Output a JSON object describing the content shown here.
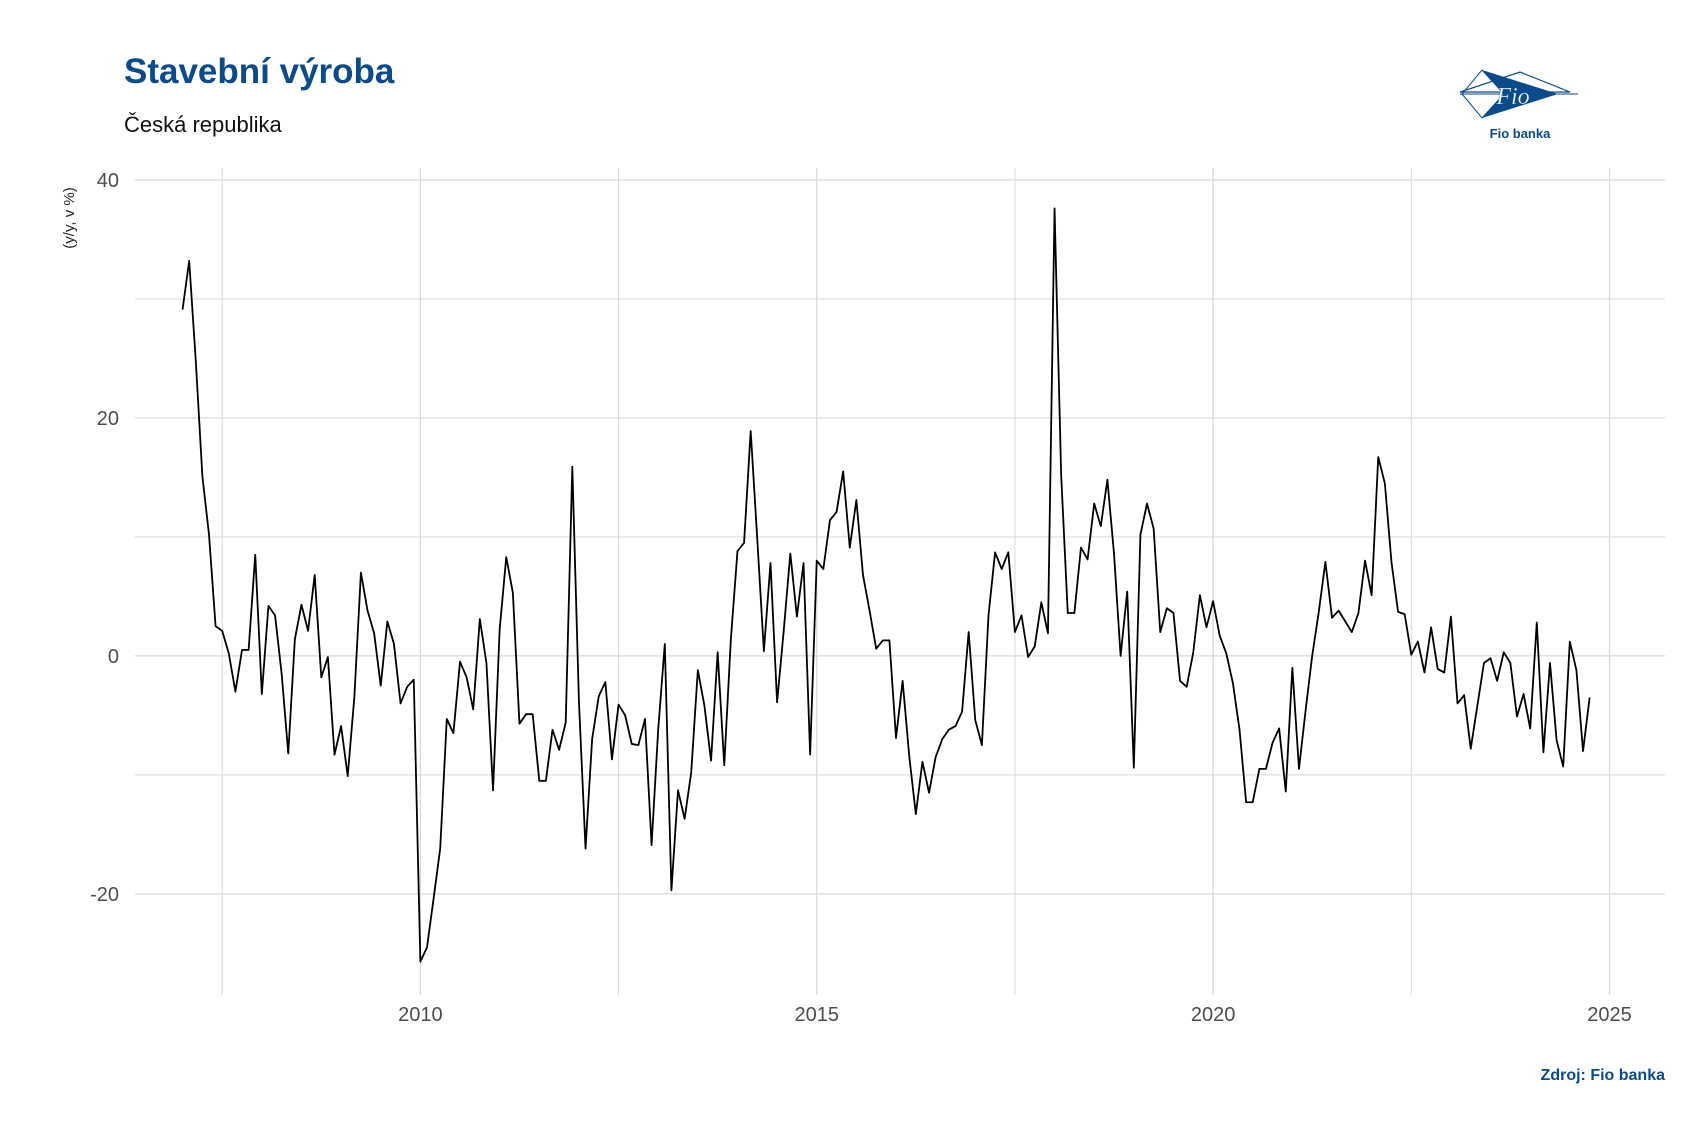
{
  "title": "Stavební výroba",
  "subtitle": "Česká republika",
  "source": "Zdroj: Fio banka",
  "logo": {
    "mark_text": "Fio",
    "caption": "Fio banka",
    "color": "#0b4a8b"
  },
  "colors": {
    "title": "#0b4a8b",
    "line": "#000000",
    "grid": "#d9d9d9"
  },
  "chart_data": {
    "type": "line",
    "title": "Stavební výroba",
    "subtitle": "Česká republika",
    "xlabel": "",
    "ylabel": "(y/y, v %)",
    "xlim": [
      2006.4,
      2025.7
    ],
    "ylim": [
      -28.5,
      41
    ],
    "x_ticks": [
      2010,
      2015,
      2020,
      2025
    ],
    "x_tick_labels": [
      "2010",
      "2015",
      "2020",
      "2025"
    ],
    "y_ticks": [
      -20,
      0,
      20,
      40
    ],
    "y_tick_labels": [
      "-20",
      "0",
      "20",
      "40"
    ],
    "grid": true,
    "legend": "none",
    "series": [
      {
        "start": 2007.0,
        "step": 0.08333,
        "values": [
          29.1,
          33.2,
          24.8,
          15.1,
          10.2,
          2.5,
          2.1,
          0.2,
          -3.0,
          0.5,
          0.5,
          8.5,
          -3.2,
          4.2,
          3.4,
          -1.5,
          -8.2,
          1.4,
          4.3,
          2.1,
          6.8,
          -1.8,
          -0.1,
          -8.3,
          -5.9,
          -10.1,
          -3.5,
          7.0,
          3.8,
          1.9,
          -2.5,
          2.9,
          1.0,
          -4.0,
          -2.6,
          -2.0,
          -25.7,
          -24.5,
          -20.4,
          -16.2,
          -5.3,
          -6.5,
          -0.5,
          -1.8,
          -4.5,
          3.1,
          -0.6,
          -11.3,
          2.2,
          8.3,
          5.3,
          -5.7,
          -4.9,
          -4.9,
          -10.5,
          -10.5,
          -6.2,
          -7.9,
          -5.6,
          15.9,
          -3.8,
          -16.2,
          -7.0,
          -3.4,
          -2.2,
          -8.7,
          -4.1,
          -5.0,
          -7.4,
          -7.5,
          -5.3,
          -15.9,
          -6.2,
          1.0,
          -19.7,
          -11.3,
          -13.7,
          -9.8,
          -1.2,
          -4.2,
          -8.8,
          0.3,
          -9.2,
          1.4,
          8.8,
          9.5,
          18.9,
          9.8,
          0.4,
          7.8,
          -3.9,
          2.1,
          8.6,
          3.3,
          7.8,
          -8.3,
          8.0,
          7.3,
          11.4,
          12.1,
          15.5,
          9.1,
          13.1,
          6.8,
          3.8,
          0.6,
          1.3,
          1.3,
          -6.9,
          -2.1,
          -8.4,
          -13.3,
          -8.9,
          -11.5,
          -8.5,
          -7.0,
          -6.2,
          -5.9,
          -4.7,
          2.0,
          -5.4,
          -7.5,
          3.4,
          8.7,
          7.3,
          8.7,
          2.0,
          3.4,
          -0.1,
          0.8,
          4.5,
          1.9,
          37.6,
          15.2,
          3.6,
          3.6,
          9.1,
          8.1,
          12.8,
          10.9,
          14.8,
          8.6,
          0.0,
          5.4,
          -9.4,
          10.2,
          12.8,
          10.7,
          2.0,
          4.0,
          3.6,
          -2.1,
          -2.6,
          0.3,
          5.1,
          2.4,
          4.6,
          1.7,
          0.2,
          -2.3,
          -6.2,
          -12.3,
          -12.3,
          -9.5,
          -9.5,
          -7.3,
          -6.1,
          -11.4,
          -1.0,
          -9.5,
          -4.6,
          0.0,
          3.7,
          7.9,
          3.2,
          3.8,
          2.9,
          2.0,
          3.6,
          8.0,
          5.1,
          16.7,
          14.5,
          7.9,
          3.7,
          3.5,
          0.1,
          1.2,
          -1.4,
          2.4,
          -1.1,
          -1.4,
          3.3,
          -4.0,
          -3.3,
          -7.8,
          -4.2,
          -0.6,
          -0.2,
          -2.1,
          0.3,
          -0.6,
          -5.1,
          -3.2,
          -6.1,
          2.8,
          -8.1,
          -0.6,
          -7.1,
          -9.3,
          1.2,
          -1.2,
          -8.0,
          -3.5
        ]
      }
    ]
  }
}
